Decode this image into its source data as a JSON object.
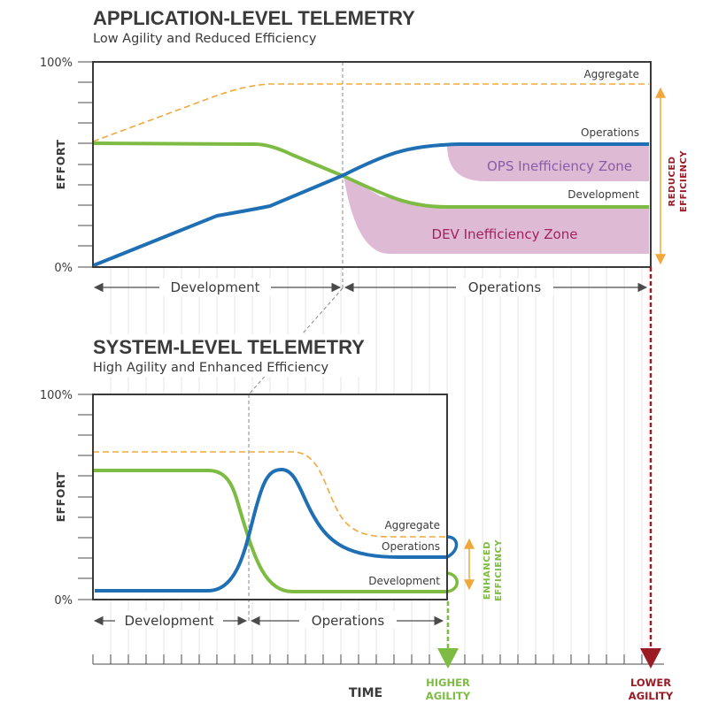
{
  "colors": {
    "operations": "#1f6fb5",
    "development": "#7dbb43",
    "aggregate": "#f1a83a",
    "zone_fill": "#dcb3d0",
    "zone_ops_text": "#8a5ba6",
    "zone_dev_text": "#a3205f",
    "lower_agility": "#9b1b24",
    "grid": "#d9d9d9",
    "frame": "#3a3a3a"
  },
  "top_chart": {
    "title": "APPLICATION-LEVEL TELEMETRY",
    "subtitle": "Low Agility and Reduced Efficiency",
    "y_axis_label": "EFFORT",
    "y_tick_top": "100%",
    "y_tick_bottom": "0%",
    "phase_left": "Development",
    "phase_right": "Operations",
    "series_labels": {
      "aggregate": "Aggregate",
      "operations": "Operations",
      "development": "Development"
    },
    "zones": {
      "ops": "OPS Inefficiency Zone",
      "dev": "DEV Inefficiency Zone"
    },
    "side_label_line1": "REDUCED",
    "side_label_line2": "EFFICIENCY"
  },
  "bottom_chart": {
    "title": "SYSTEM-LEVEL TELEMETRY",
    "subtitle": "High Agility and Enhanced Efficiency",
    "y_axis_label": "EFFORT",
    "y_tick_top": "100%",
    "y_tick_bottom": "0%",
    "phase_left": "Development",
    "phase_right": "Operations",
    "series_labels": {
      "aggregate": "Aggregate",
      "operations": "Operations",
      "development": "Development"
    },
    "side_label_line1": "ENHANCED",
    "side_label_line2": "EFFICIENCY"
  },
  "timeline": {
    "label": "TIME",
    "higher_line1": "HIGHER",
    "higher_line2": "AGILITY",
    "lower_line1": "LOWER",
    "lower_line2": "AGILITY"
  }
}
